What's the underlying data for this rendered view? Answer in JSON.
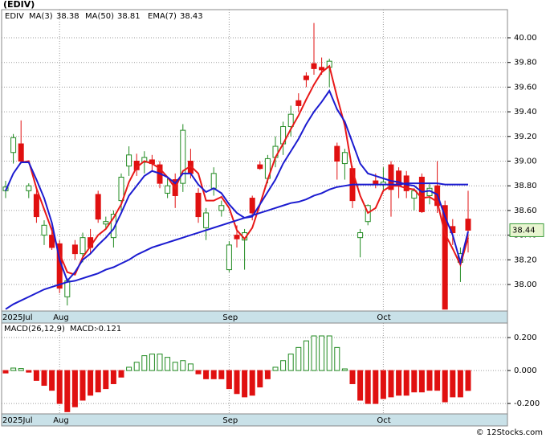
{
  "chart_data": [
    {
      "type": "candlestick",
      "title": "(EDIV)",
      "symbol": "EDIV",
      "categories": [
        "2025Jul",
        null,
        null,
        null,
        null,
        null,
        null,
        "Aug",
        null,
        null,
        null,
        null,
        null,
        null,
        null,
        null,
        null,
        null,
        null,
        null,
        null,
        null,
        null,
        null,
        null,
        null,
        null,
        null,
        null,
        "Sep",
        null,
        null,
        null,
        null,
        null,
        null,
        null,
        null,
        null,
        null,
        null,
        null,
        null,
        null,
        null,
        null,
        null,
        null,
        null,
        "Oct",
        null,
        null,
        null,
        null,
        null,
        null,
        null,
        null,
        null,
        null,
        null
      ],
      "open": [
        38.76,
        39.07,
        39.14,
        38.76,
        38.73,
        38.4,
        38.4,
        38.33,
        37.9,
        38.32,
        38.25,
        38.38,
        38.73,
        38.49,
        38.38,
        38.68,
        38.96,
        39.0,
        38.99,
        39.01,
        38.97,
        38.74,
        38.85,
        38.82,
        39.0,
        38.74,
        38.46,
        38.78,
        38.6,
        38.12,
        38.4,
        38.36,
        38.7,
        38.97,
        38.86,
        39.03,
        39.14,
        39.28,
        39.49,
        39.69,
        39.79,
        39.76,
        39.76,
        39.12,
        38.98,
        38.94,
        38.38,
        38.51,
        38.84,
        38.81,
        38.97,
        38.92,
        38.88,
        38.7,
        38.87,
        38.72,
        38.8,
        38.64,
        38.47,
        38.18,
        38.53
      ],
      "high": [
        38.84,
        39.22,
        39.33,
        38.82,
        38.78,
        38.52,
        38.46,
        38.36,
        38.05,
        38.36,
        38.42,
        38.45,
        38.76,
        38.55,
        38.6,
        38.9,
        39.12,
        39.06,
        39.08,
        39.05,
        39.0,
        38.86,
        38.9,
        39.3,
        39.1,
        38.78,
        38.62,
        38.95,
        38.68,
        38.35,
        38.48,
        38.45,
        38.72,
        39.0,
        39.05,
        39.2,
        39.32,
        39.45,
        39.55,
        39.72,
        40.12,
        39.84,
        39.83,
        39.15,
        39.1,
        38.96,
        38.45,
        38.65,
        38.9,
        38.95,
        39.0,
        38.95,
        38.92,
        38.78,
        38.9,
        38.82,
        39.0,
        38.68,
        38.53,
        38.3,
        38.76
      ],
      "low": [
        38.7,
        38.98,
        38.98,
        38.7,
        38.5,
        38.32,
        38.28,
        37.93,
        37.83,
        38.2,
        38.18,
        38.25,
        38.5,
        38.45,
        38.3,
        38.6,
        38.88,
        38.88,
        38.9,
        38.92,
        38.78,
        38.7,
        38.62,
        38.75,
        38.86,
        38.5,
        38.36,
        38.72,
        38.55,
        38.1,
        38.3,
        38.12,
        38.52,
        38.93,
        38.82,
        38.95,
        39.05,
        39.2,
        39.4,
        39.6,
        39.7,
        39.7,
        39.6,
        38.85,
        38.85,
        38.62,
        38.22,
        38.48,
        38.78,
        38.75,
        38.55,
        38.7,
        38.7,
        38.6,
        38.58,
        38.65,
        38.58,
        37.8,
        38.32,
        38.02,
        38.26
      ],
      "close": [
        38.79,
        39.19,
        39.0,
        38.8,
        38.55,
        38.48,
        38.3,
        37.97,
        38.03,
        38.25,
        38.38,
        38.3,
        38.53,
        38.51,
        38.57,
        38.87,
        39.05,
        38.93,
        39.03,
        38.98,
        38.82,
        38.8,
        38.72,
        39.25,
        38.9,
        38.55,
        38.58,
        38.9,
        38.64,
        38.32,
        38.37,
        38.42,
        38.58,
        38.94,
        39.02,
        39.12,
        39.28,
        39.38,
        39.45,
        39.66,
        39.75,
        39.74,
        39.81,
        39.0,
        39.07,
        38.68,
        38.42,
        38.64,
        38.81,
        38.83,
        38.77,
        38.8,
        38.76,
        38.76,
        38.59,
        38.78,
        38.64,
        37.8,
        38.42,
        38.25,
        38.44
      ],
      "up_color": "#228b22",
      "down_color": "#e01010",
      "series": [
        {
          "name": "MA(3)",
          "color": "#e81818",
          "values": [
            null,
            null,
            38.99,
            39.0,
            38.78,
            38.61,
            38.44,
            38.25,
            38.1,
            38.08,
            38.22,
            38.31,
            38.4,
            38.45,
            38.54,
            38.65,
            38.83,
            38.95,
            39.0,
            38.98,
            38.94,
            38.87,
            38.78,
            38.92,
            38.96,
            38.9,
            38.68,
            38.68,
            38.71,
            38.62,
            38.44,
            38.37,
            38.46,
            38.65,
            38.85,
            39.03,
            39.14,
            39.26,
            39.37,
            39.5,
            39.62,
            39.72,
            39.77,
            39.52,
            39.29,
            38.92,
            38.72,
            38.58,
            38.62,
            38.76,
            38.8,
            38.8,
            38.78,
            38.77,
            38.7,
            38.71,
            38.67,
            38.41,
            38.29,
            38.16,
            38.38
          ]
        },
        {
          "name": "MA(50)",
          "color": "#1c1cd0",
          "values": [
            37.8,
            37.84,
            37.87,
            37.9,
            37.93,
            37.96,
            37.98,
            38.0,
            38.02,
            38.03,
            38.05,
            38.07,
            38.09,
            38.12,
            38.14,
            38.17,
            38.2,
            38.24,
            38.27,
            38.3,
            38.32,
            38.34,
            38.36,
            38.38,
            38.4,
            38.42,
            38.44,
            38.46,
            38.48,
            38.5,
            38.52,
            38.54,
            38.56,
            38.58,
            38.6,
            38.62,
            38.64,
            38.66,
            38.67,
            38.69,
            38.72,
            38.74,
            38.77,
            38.79,
            38.8,
            38.81,
            38.81,
            38.81,
            38.81,
            38.81,
            38.81,
            38.81,
            38.82,
            38.82,
            38.82,
            38.82,
            38.82,
            38.81,
            38.81,
            38.81,
            38.81
          ]
        },
        {
          "name": "EMA(7)",
          "color": "#1c1cd0",
          "values": [
            38.76,
            38.9,
            38.99,
            38.99,
            38.85,
            38.7,
            38.5,
            38.2,
            38.03,
            38.1,
            38.2,
            38.25,
            38.32,
            38.38,
            38.45,
            38.58,
            38.72,
            38.8,
            38.88,
            38.92,
            38.9,
            38.87,
            38.82,
            38.9,
            38.9,
            38.81,
            38.75,
            38.78,
            38.74,
            38.65,
            38.58,
            38.54,
            38.55,
            38.65,
            38.75,
            38.85,
            38.98,
            39.08,
            39.18,
            39.3,
            39.4,
            39.48,
            39.57,
            39.42,
            39.32,
            39.15,
            38.98,
            38.9,
            38.88,
            38.86,
            38.84,
            38.83,
            38.81,
            38.8,
            38.75,
            38.76,
            38.73,
            38.55,
            38.4,
            38.18,
            38.43
          ]
        }
      ],
      "ylim": [
        37.785,
        40.228
      ],
      "yticks": [
        {
          "value": 38.0,
          "label": "38.00"
        },
        {
          "value": 38.2,
          "label": "38.20"
        },
        {
          "value": 38.4,
          "label": "38.40"
        },
        {
          "value": 38.6,
          "label": "38.60"
        },
        {
          "value": 38.8,
          "label": "38.80"
        },
        {
          "value": 39.0,
          "label": "39.00"
        },
        {
          "value": 39.2,
          "label": "39.20"
        },
        {
          "value": 39.4,
          "label": "39.40"
        },
        {
          "value": 39.6,
          "label": "39.60"
        },
        {
          "value": 39.8,
          "label": "39.80"
        },
        {
          "value": 40.0,
          "label": "40.00"
        }
      ],
      "grid": true
    },
    {
      "type": "bar",
      "name": "MACD(26,12,9)",
      "value_name": "MACD:",
      "values": [
        -0.015,
        0.015,
        0.012,
        -0.01,
        -0.06,
        -0.09,
        -0.12,
        -0.2,
        -0.25,
        -0.22,
        -0.18,
        -0.15,
        -0.13,
        -0.11,
        -0.08,
        -0.04,
        0.02,
        0.05,
        0.09,
        0.1,
        0.1,
        0.08,
        0.05,
        0.06,
        0.04,
        -0.02,
        -0.05,
        -0.05,
        -0.05,
        -0.11,
        -0.14,
        -0.16,
        -0.15,
        -0.1,
        -0.05,
        0.02,
        0.06,
        0.1,
        0.14,
        0.18,
        0.21,
        0.21,
        0.21,
        0.14,
        0.01,
        -0.08,
        -0.18,
        -0.2,
        -0.2,
        -0.17,
        -0.16,
        -0.15,
        -0.15,
        -0.13,
        -0.13,
        -0.12,
        -0.12,
        -0.19,
        -0.16,
        -0.16,
        -0.121
      ],
      "up_color": "#228b22",
      "down_color": "#e01010",
      "ylim": [
        -0.263,
        0.288
      ],
      "yticks": [
        {
          "value": -0.2,
          "label": "-0.200"
        },
        {
          "value": 0,
          "label": "0.000"
        },
        {
          "value": 0.2,
          "label": "0.200"
        }
      ],
      "grid": true
    }
  ],
  "source": "© 12Stocks.com"
}
